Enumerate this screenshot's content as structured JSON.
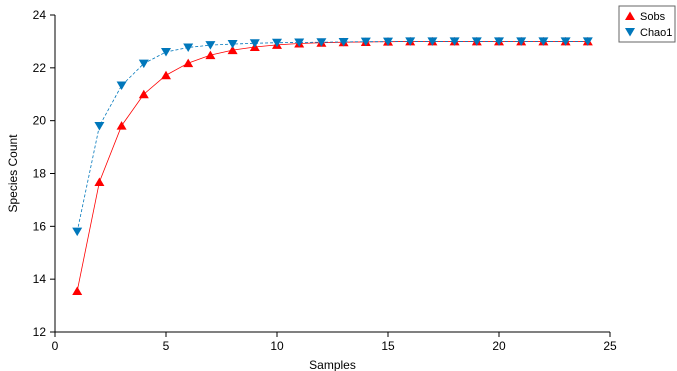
{
  "chart_data": {
    "type": "line",
    "xlabel": "Samples",
    "ylabel": "Species Count",
    "xlim": [
      0,
      25
    ],
    "ylim": [
      12,
      24
    ],
    "xticks": [
      0,
      5,
      10,
      15,
      20,
      25
    ],
    "yticks": [
      12,
      14,
      16,
      18,
      20,
      22,
      24
    ],
    "grid": false,
    "legend_position": "top-right",
    "x": [
      1,
      2,
      3,
      4,
      5,
      6,
      7,
      8,
      9,
      10,
      11,
      12,
      13,
      14,
      15,
      16,
      17,
      18,
      19,
      20,
      21,
      22,
      23,
      24
    ],
    "series": [
      {
        "name": "Sobs",
        "color": "#ff0000",
        "marker": "triangle-up",
        "line_style": "solid",
        "values": [
          13.55,
          17.68,
          19.81,
          21.0,
          21.72,
          22.18,
          22.48,
          22.67,
          22.79,
          22.87,
          22.92,
          22.95,
          22.97,
          22.98,
          22.99,
          23.0,
          23.0,
          23.0,
          23.0,
          23.0,
          23.0,
          23.0,
          23.0,
          23.0
        ]
      },
      {
        "name": "Chao1",
        "color": "#0077bb",
        "marker": "triangle-down",
        "line_style": "dashed",
        "values": [
          15.8,
          19.8,
          21.33,
          22.16,
          22.6,
          22.77,
          22.86,
          22.9,
          22.93,
          22.95,
          22.96,
          22.97,
          22.98,
          22.99,
          22.99,
          23.0,
          23.0,
          23.0,
          23.0,
          23.0,
          23.0,
          23.0,
          23.0,
          23.0
        ]
      }
    ]
  }
}
